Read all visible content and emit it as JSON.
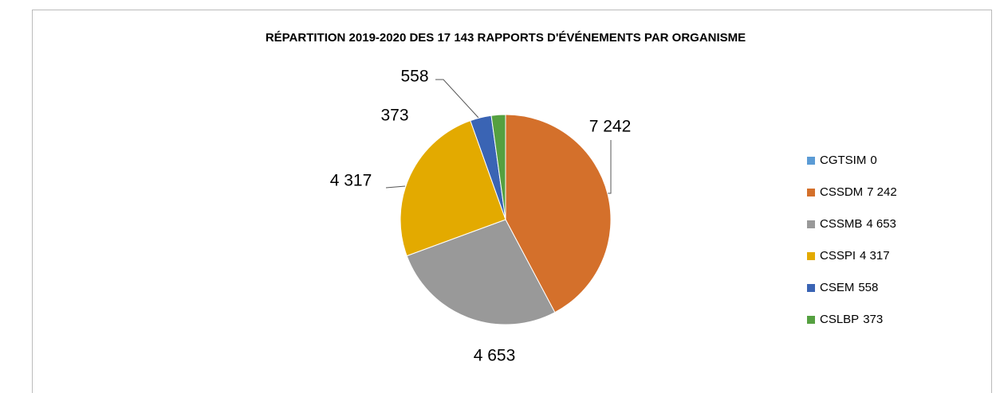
{
  "chart_data": {
    "type": "pie",
    "title": "RÉPARTITION 2019-2020 DES 17 143 RAPPORTS D'ÉVÉNEMENTS PAR ORGANISME",
    "categories": [
      "CGTSIM",
      "CSSDM",
      "CSSMB",
      "CSSPI",
      "CSEM",
      "CSLBP"
    ],
    "values": [
      0,
      7242,
      4653,
      4317,
      558,
      373
    ],
    "value_labels": [
      "0",
      "7 242",
      "4 653",
      "4 317",
      "558",
      "373"
    ],
    "colors": [
      "#5b9bd5",
      "#d4702b",
      "#999999",
      "#e3aa00",
      "#3a64b4",
      "#55a040"
    ],
    "legend": "right"
  }
}
